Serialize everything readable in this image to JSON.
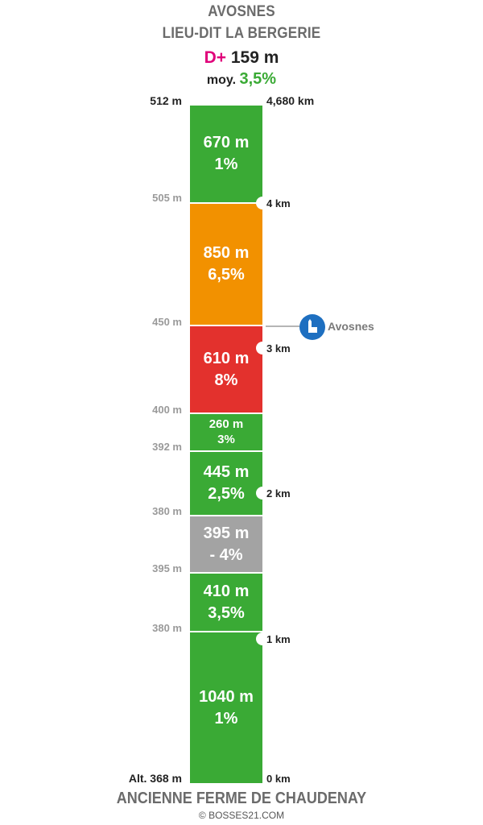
{
  "header": {
    "title_line1": "AVOSNES",
    "title_line2": "LIEU-DIT LA BERGERIE",
    "dplus_label": "D+",
    "dplus_value": "159 m",
    "avg_label": "moy.",
    "avg_value": "3,5%"
  },
  "colors": {
    "green": "#3aaa35",
    "orange": "#f29100",
    "red": "#e3312d",
    "grey": "#a3a3a3",
    "magenta": "#e0007a",
    "poi_blue": "#1e6fc0"
  },
  "altitudes": {
    "top": "512 m",
    "a505": "505 m",
    "a450": "450 m",
    "a400": "400 m",
    "a392": "392 m",
    "a380a": "380 m",
    "a395": "395 m",
    "a380b": "380 m",
    "bottom": "Alt. 368 m"
  },
  "distances": {
    "top": "4,680 km",
    "k4": "4 km",
    "k3": "3 km",
    "k2": "2 km",
    "k1": "1 km",
    "k0": "0 km"
  },
  "segments": [
    {
      "length": "670 m",
      "grade": "1%"
    },
    {
      "length": "850 m",
      "grade": "6,5%"
    },
    {
      "length": "610 m",
      "grade": "8%"
    },
    {
      "length": "260 m",
      "grade": "3%"
    },
    {
      "length": "445 m",
      "grade": "2,5%"
    },
    {
      "length": "395 m",
      "grade": "- 4%"
    },
    {
      "length": "410 m",
      "grade": "3,5%"
    },
    {
      "length": "1040 m",
      "grade": "1%"
    }
  ],
  "poi": {
    "label": "Avosnes",
    "icon": "church-icon"
  },
  "footer": {
    "start_name": "ANCIENNE FERME DE CHAUDENAY",
    "credit": "© BOSSES21.COM"
  }
}
